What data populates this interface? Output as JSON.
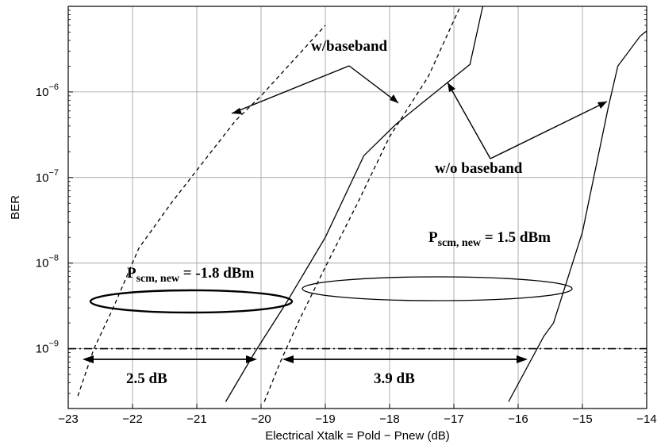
{
  "chart_data": {
    "type": "line",
    "title": "",
    "xlabel": "Electrical Xtalk = Pold − Pnew (dB)",
    "ylabel": "BER",
    "xlim": [
      -23,
      -14
    ],
    "ylim": [
      2e-10,
      1e-05
    ],
    "yscale": "log",
    "x_ticks": [
      -23,
      -22,
      -21,
      -20,
      -19,
      -18,
      -17,
      -16,
      -15,
      -14
    ],
    "x_tick_labels": [
      "−23",
      "−22",
      "−21",
      "−20",
      "−19",
      "−18",
      "−17",
      "−16",
      "−15",
      "−14"
    ],
    "y_ticks": [
      {
        "value": 1e-09,
        "base": "10",
        "exp": "−9"
      },
      {
        "value": 1e-08,
        "base": "10",
        "exp": "−8"
      },
      {
        "value": 1e-07,
        "base": "10",
        "exp": "−7"
      },
      {
        "value": 1e-06,
        "base": "10",
        "exp": "−6"
      }
    ],
    "grid": true,
    "series": [
      {
        "style": "dashed",
        "color": "#000000",
        "points": [
          [
            -22.85,
            2.8e-10
          ],
          [
            -22.6,
            1e-09
          ],
          [
            -22.3,
            3e-09
          ],
          [
            -21.9,
            1.5e-08
          ],
          [
            -21.4,
            5e-08
          ],
          [
            -20.4,
            4.6e-07
          ],
          [
            -20.0,
            9e-07
          ],
          [
            -19.0,
            6e-06
          ]
        ]
      },
      {
        "style": "solid",
        "color": "#000000",
        "points": [
          [
            -20.55,
            2.4e-10
          ],
          [
            -20.1,
            9e-10
          ],
          [
            -19.6,
            3.5e-09
          ],
          [
            -19.0,
            2e-08
          ],
          [
            -18.4,
            1.8e-07
          ],
          [
            -17.9,
            4.2e-07
          ],
          [
            -16.75,
            2.1e-06
          ],
          [
            -16.55,
            1e-05
          ]
        ]
      },
      {
        "style": "dashed",
        "color": "#000000",
        "points": [
          [
            -19.95,
            2.4e-10
          ],
          [
            -19.7,
            7e-10
          ],
          [
            -19.4,
            2.2e-09
          ],
          [
            -19.0,
            9e-09
          ],
          [
            -18.5,
            5e-08
          ],
          [
            -18.0,
            3e-07
          ],
          [
            -17.4,
            1.5e-06
          ],
          [
            -16.9,
            1e-05
          ]
        ]
      },
      {
        "style": "solid",
        "color": "#000000",
        "points": [
          [
            -16.15,
            2.4e-10
          ],
          [
            -15.6,
            1.4e-09
          ],
          [
            -15.45,
            2e-09
          ],
          [
            -15.0,
            2.3e-08
          ],
          [
            -14.6,
            6.5e-07
          ],
          [
            -14.45,
            2e-06
          ],
          [
            -14.1,
            4.5e-06
          ],
          [
            -13.95,
            5.5e-06
          ]
        ]
      }
    ],
    "reference_line": {
      "y": 1e-09,
      "style": "dashdot"
    },
    "annotations": {
      "wbaseband": "w/baseband",
      "wobaseband": "w/o baseband",
      "pscm_left": {
        "prefix": "P",
        "sub": "scm, new",
        "suffix": " = -1.8 dBm"
      },
      "pscm_right": {
        "prefix": "P",
        "sub": "scm, new",
        "suffix": " = 1.5 dBm"
      },
      "delta_left": "2.5 dB",
      "delta_right": "3.9 dB"
    }
  }
}
